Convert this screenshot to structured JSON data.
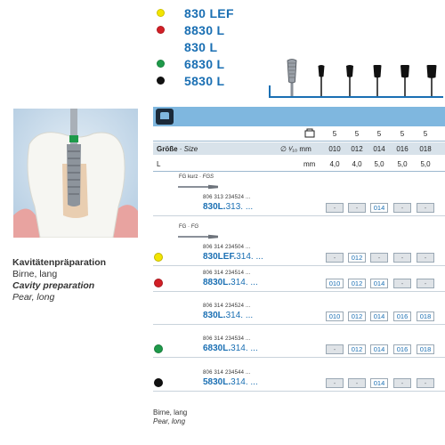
{
  "variants": [
    {
      "name": "830 LEF",
      "color": "#f3e500"
    },
    {
      "name": "8830 L",
      "color": "#d21f26"
    },
    {
      "name": "830 L",
      "color": ""
    },
    {
      "name": "6830 L",
      "color": "#1e9a4a"
    },
    {
      "name": "5830 L",
      "color": "#111111"
    }
  ],
  "table": {
    "pack_values": [
      "5",
      "5",
      "5",
      "5",
      "5"
    ],
    "size_label_de": "Größe",
    "size_label_en": "Size",
    "size_separator": " · ",
    "size_unit": "∅ ¹⁄₁₀ mm",
    "sizes": [
      "010",
      "012",
      "014",
      "016",
      "018"
    ],
    "length_label": "L",
    "length_unit": "mm",
    "lengths": [
      "4,0",
      "4,0",
      "5,0",
      "5,0",
      "5,0"
    ]
  },
  "left_panel": {
    "title_de": "Kavitätenpräparation",
    "sub_de": "Birne, lang",
    "title_en": "Cavity preparation",
    "sub_en": "Pear, long"
  },
  "groups": [
    {
      "shank_label": "FG kurz · ",
      "shank_label_en": "FGS",
      "order": "806 313 234524 ...",
      "ref": "830L.",
      "ref_suffix": "313. ...",
      "dot": "",
      "cells": [
        "-",
        "-",
        "014",
        "-",
        "-"
      ]
    },
    {
      "shank_label": "FG · ",
      "shank_label_en": "FG",
      "order": "806 314 234504 ...",
      "ref": "830LEF.",
      "ref_suffix": "314. ...",
      "dot": "#f3e500",
      "cells": [
        "-",
        "012",
        "-",
        "-",
        "-"
      ]
    },
    {
      "shank_label": "",
      "shank_label_en": "",
      "order": "806 314 234514 ...",
      "ref": "8830L.",
      "ref_suffix": "314. ...",
      "dot": "#d21f26",
      "cells": [
        "010",
        "012",
        "014",
        "-",
        "-"
      ]
    },
    {
      "shank_label": "",
      "shank_label_en": "",
      "order": "806 314 234524 ...",
      "ref": "830L.",
      "ref_suffix": "314. ...",
      "dot": "",
      "cells": [
        "010",
        "012",
        "014",
        "016",
        "018"
      ]
    },
    {
      "shank_label": "",
      "shank_label_en": "",
      "order": "806 314 234534 ...",
      "ref": "6830L.",
      "ref_suffix": "314. ...",
      "dot": "#1e9a4a",
      "cells": [
        "-",
        "012",
        "014",
        "016",
        "018"
      ]
    },
    {
      "shank_label": "",
      "shank_label_en": "",
      "order": "806 314 234544 ...",
      "ref": "5830L.",
      "ref_suffix": "314. ...",
      "dot": "#111111",
      "cells": [
        "-",
        "-",
        "014",
        "-",
        "-"
      ]
    }
  ],
  "footer": {
    "de": "Birne, lang",
    "en": "Pear, long"
  },
  "colors": {
    "accent": "#1a6fb3",
    "band": "#7fb7df"
  }
}
